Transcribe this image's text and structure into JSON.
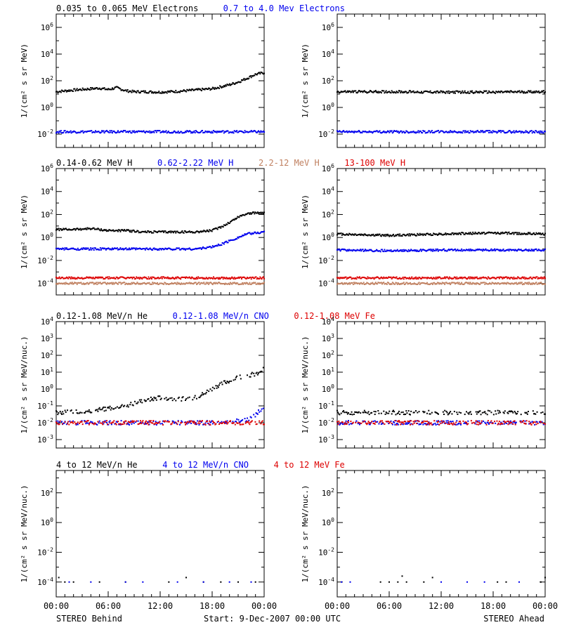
{
  "colors": {
    "black": "#000000",
    "blue": "#0000ee",
    "brown": "#c08060",
    "red": "#dd0000"
  },
  "x_tick_labels": [
    "00:00",
    "06:00",
    "12:00",
    "18:00",
    "00:00"
  ],
  "footer": {
    "left": "STEREO Behind",
    "center": "Start:  9-Dec-2007 00:00 UTC",
    "right": "STEREO Ahead"
  },
  "chart_data": [
    {
      "type": "scatter",
      "row": 1,
      "col": "left",
      "scale": "log",
      "ylabel": "1/(cm² s sr MeV)",
      "ylim_exp": [
        -3,
        7
      ],
      "ytick_exps": [
        -2,
        0,
        2,
        4,
        6
      ],
      "legend": [
        {
          "text": "0.035 to 0.065 MeV Electrons",
          "color": "#000000"
        },
        {
          "text": "0.7 to 4.0 Mev Electrons",
          "color": "#0000ee"
        }
      ],
      "series": [
        {
          "name": "0.035 to 0.065 MeV Electrons",
          "color": "#000000",
          "x": [
            0,
            2,
            4,
            5,
            6,
            7,
            8,
            9,
            10,
            12,
            14,
            16,
            18,
            19,
            20,
            21,
            22,
            23,
            24
          ],
          "y": [
            15,
            20,
            25,
            28,
            22,
            30,
            18,
            15,
            15,
            14,
            16,
            20,
            25,
            35,
            50,
            80,
            150,
            300,
            400
          ]
        },
        {
          "name": "0.7 to 4.0 Mev Electrons",
          "color": "#0000ee",
          "x": [
            0,
            4,
            8,
            12,
            16,
            20,
            24
          ],
          "y": [
            0.015,
            0.015,
            0.015,
            0.015,
            0.015,
            0.015,
            0.015
          ]
        }
      ]
    },
    {
      "type": "scatter",
      "row": 1,
      "col": "right",
      "scale": "log",
      "ylabel": "1/(cm² s sr MeV)",
      "ylim_exp": [
        -3,
        7
      ],
      "ytick_exps": [
        -2,
        0,
        2,
        4,
        6
      ],
      "series": [
        {
          "color": "#000000",
          "x": [
            0,
            6,
            12,
            18,
            24
          ],
          "y": [
            15,
            15,
            14,
            14,
            15
          ]
        },
        {
          "color": "#0000ee",
          "x": [
            0,
            6,
            12,
            18,
            24
          ],
          "y": [
            0.015,
            0.015,
            0.015,
            0.015,
            0.015
          ]
        }
      ]
    },
    {
      "type": "scatter",
      "row": 2,
      "col": "left",
      "scale": "log",
      "ylabel": "1/(cm² s sr MeV)",
      "ylim_exp": [
        -5,
        6
      ],
      "ytick_exps": [
        -4,
        -2,
        0,
        2,
        4,
        6
      ],
      "legend": [
        {
          "text": "0.14-0.62 MeV H",
          "color": "#000000"
        },
        {
          "text": "0.62-2.22 MeV H",
          "color": "#0000ee"
        },
        {
          "text": "2.2-12 MeV H",
          "color": "#c08060"
        },
        {
          "text": "13-100 MeV H",
          "color": "#dd0000"
        }
      ],
      "series": [
        {
          "name": "0.14-0.62 MeV H",
          "color": "#000000",
          "x": [
            0,
            2,
            4,
            6,
            8,
            10,
            12,
            14,
            16,
            18,
            19,
            20,
            21,
            22,
            24
          ],
          "y": [
            5,
            5,
            6,
            4,
            4,
            3,
            3,
            3,
            3,
            4,
            8,
            20,
            60,
            120,
            150
          ]
        },
        {
          "name": "0.62-2.22 MeV H",
          "color": "#0000ee",
          "x": [
            0,
            4,
            8,
            12,
            16,
            17,
            18,
            19,
            20,
            21,
            22,
            24
          ],
          "y": [
            0.1,
            0.1,
            0.1,
            0.1,
            0.1,
            0.12,
            0.15,
            0.25,
            0.5,
            1,
            2,
            3
          ]
        },
        {
          "name": "2.2-12 MeV H",
          "color": "#c08060",
          "x": [
            0,
            6,
            12,
            18,
            24
          ],
          "y": [
            0.0001,
            0.0001,
            0.0001,
            0.0001,
            0.0001
          ]
        },
        {
          "name": "13-100 MeV H",
          "color": "#dd0000",
          "x": [
            0,
            6,
            12,
            18,
            24
          ],
          "y": [
            0.0003,
            0.0003,
            0.0003,
            0.0003,
            0.0003
          ]
        }
      ]
    },
    {
      "type": "scatter",
      "row": 2,
      "col": "right",
      "scale": "log",
      "ylabel": "1/(cm² s sr MeV)",
      "ylim_exp": [
        -5,
        6
      ],
      "ytick_exps": [
        -4,
        -2,
        0,
        2,
        4,
        6
      ],
      "series": [
        {
          "color": "#000000",
          "x": [
            0,
            6,
            12,
            18,
            24
          ],
          "y": [
            2,
            1.5,
            2,
            2.5,
            2
          ]
        },
        {
          "color": "#0000ee",
          "x": [
            0,
            6,
            12,
            18,
            24
          ],
          "y": [
            0.08,
            0.07,
            0.08,
            0.08,
            0.08
          ]
        },
        {
          "color": "#c08060",
          "x": [
            0,
            6,
            12,
            18,
            24
          ],
          "y": [
            0.0001,
            0.0001,
            0.0001,
            0.0001,
            0.0001
          ]
        },
        {
          "color": "#dd0000",
          "x": [
            0,
            6,
            12,
            18,
            24
          ],
          "y": [
            0.0003,
            0.0003,
            0.0003,
            0.0003,
            0.0003
          ]
        }
      ]
    },
    {
      "type": "scatter",
      "row": 3,
      "col": "left",
      "scale": "log",
      "ylabel": "1/(cm² s sr MeV/nuc.)",
      "ylim_exp": [
        -3.5,
        4
      ],
      "ytick_exps": [
        -3,
        -2,
        -1,
        0,
        1,
        2,
        3,
        4
      ],
      "legend": [
        {
          "text": "0.12-1.08 MeV/n He",
          "color": "#000000"
        },
        {
          "text": "0.12-1.08 MeV/n CNO",
          "color": "#0000ee"
        },
        {
          "text": "0.12-1.08 MeV Fe",
          "color": "#dd0000"
        }
      ],
      "series": [
        {
          "name": "0.12-1.08 MeV/n He",
          "color": "#000000",
          "x": [
            0,
            4,
            8,
            10,
            12,
            14,
            16,
            17,
            18,
            19,
            20,
            21,
            22,
            23,
            24
          ],
          "y": [
            0.04,
            0.05,
            0.1,
            0.2,
            0.3,
            0.25,
            0.3,
            0.5,
            1,
            2,
            3,
            5,
            6,
            8,
            15
          ]
        },
        {
          "name": "0.12-1.08 MeV/n CNO",
          "color": "#0000ee",
          "x": [
            0,
            6,
            12,
            18,
            22,
            23,
            24
          ],
          "y": [
            0.01,
            0.01,
            0.01,
            0.01,
            0.015,
            0.03,
            0.08
          ]
        },
        {
          "name": "0.12-1.08 MeV Fe",
          "color": "#dd0000",
          "x": [
            0,
            6,
            12,
            18,
            24
          ],
          "y": [
            0.01,
            0.01,
            0.01,
            0.01,
            0.01
          ]
        }
      ]
    },
    {
      "type": "scatter",
      "row": 3,
      "col": "right",
      "scale": "log",
      "ylabel": "1/(cm² s sr MeV/nuc.)",
      "ylim_exp": [
        -3.5,
        4
      ],
      "ytick_exps": [
        -3,
        -2,
        -1,
        0,
        1,
        2,
        3,
        4
      ],
      "series": [
        {
          "color": "#000000",
          "x": [
            0,
            6,
            12,
            18,
            24
          ],
          "y": [
            0.04,
            0.04,
            0.04,
            0.04,
            0.04
          ]
        },
        {
          "color": "#0000ee",
          "x": [
            0,
            6,
            12,
            18,
            24
          ],
          "y": [
            0.01,
            0.01,
            0.01,
            0.01,
            0.01
          ]
        },
        {
          "color": "#dd0000",
          "x": [
            0,
            6,
            12,
            18,
            24
          ],
          "y": [
            0.01,
            0.01,
            0.01,
            0.01,
            0.01
          ]
        }
      ]
    },
    {
      "type": "scatter",
      "row": 4,
      "col": "left",
      "scale": "log",
      "ylabel": "1/(cm² s sr MeV/nuc.)",
      "ylim_exp": [
        -5,
        3.5
      ],
      "ytick_exps": [
        -4,
        -2,
        0,
        2
      ],
      "legend": [
        {
          "text": "4 to 12 MeV/n He",
          "color": "#000000"
        },
        {
          "text": "4 to 12 MeV/n CNO",
          "color": "#0000ee"
        },
        {
          "text": "4 to 12 MeV Fe",
          "color": "#dd0000"
        }
      ],
      "series": [
        {
          "name": "4 to 12 MeV/n He",
          "color": "#000000",
          "x": [
            0.3,
            1,
            2,
            5,
            8,
            13,
            15,
            17,
            19,
            21,
            23
          ],
          "y": [
            0.0002,
            0.0001,
            0.0001,
            0.0001,
            0.0001,
            0.0001,
            0.0002,
            0.0001,
            0.0001,
            0.0001,
            0.0001
          ]
        },
        {
          "name": "4 to 12 MeV/n CNO",
          "color": "#0000ee",
          "x": [
            1.5,
            4,
            8,
            10,
            14,
            17,
            20,
            22.5
          ],
          "y": [
            0.0001,
            0.0001,
            0.0001,
            0.0001,
            0.0001,
            0.0001,
            0.0001,
            0.0001
          ]
        }
      ]
    },
    {
      "type": "scatter",
      "row": 4,
      "col": "right",
      "scale": "log",
      "ylabel": "1/(cm² s sr MeV/nuc.)",
      "ylim_exp": [
        -5,
        3.5
      ],
      "ytick_exps": [
        -4,
        -2,
        0,
        2
      ],
      "series": [
        {
          "color": "#000000",
          "x": [
            5,
            6,
            7,
            7.5,
            8,
            10,
            11,
            18.5,
            19.5,
            23.5,
            24
          ],
          "y": [
            0.0001,
            0.0001,
            0.0001,
            0.00025,
            0.0001,
            0.0001,
            0.0002,
            0.0001,
            0.0001,
            0.0001,
            0.0002
          ]
        },
        {
          "color": "#0000ee",
          "x": [
            0.5,
            1.5,
            12,
            15,
            17,
            21
          ],
          "y": [
            0.0001,
            0.0001,
            0.0001,
            0.0001,
            0.0001,
            0.0001
          ]
        }
      ]
    }
  ]
}
